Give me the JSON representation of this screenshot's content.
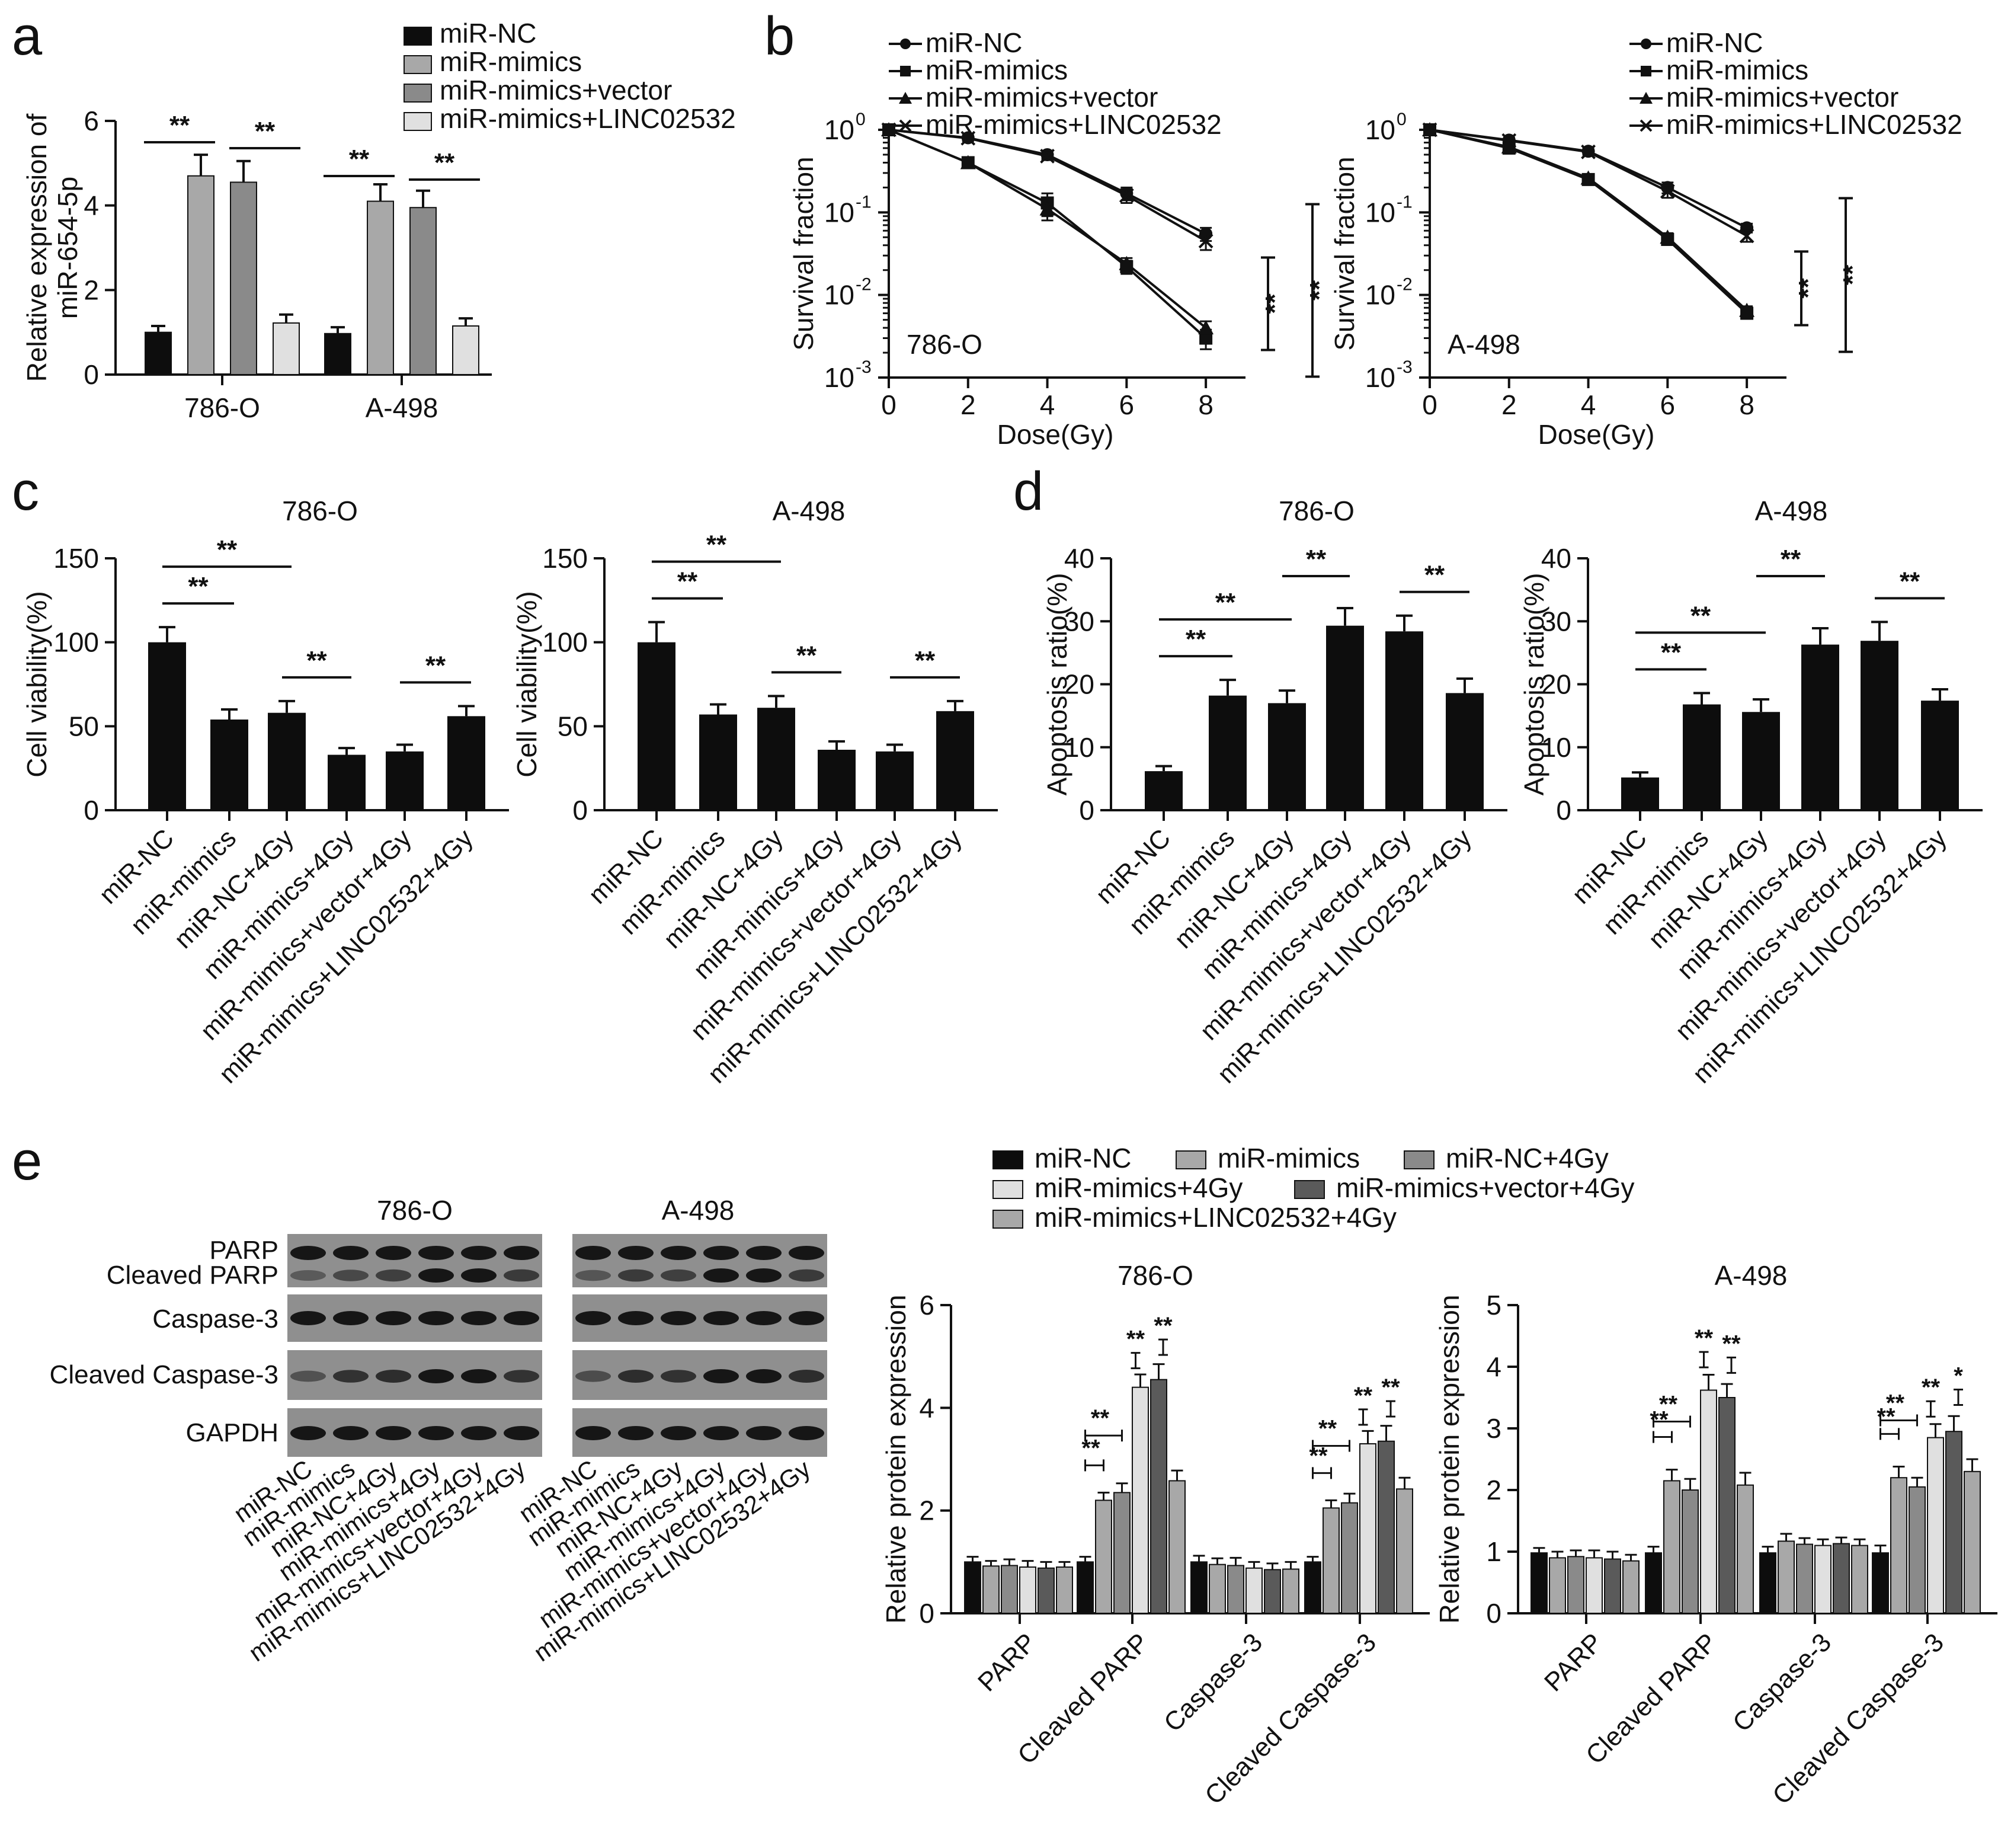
{
  "colors": {
    "black": "#0d0d0d",
    "gray_light": "#a8a8a8",
    "gray_mid": "#8a8a8a",
    "gray_pale": "#e0e0e0",
    "gray_dark": "#5a5a5a",
    "blot_bg": "#8f8f8f",
    "band": "#161616"
  },
  "panel_letters": {
    "a": "a",
    "b": "b",
    "c": "c",
    "d": "d",
    "e": "e"
  },
  "chart_data": [
    {
      "id": "a",
      "type": "bar",
      "title": "",
      "ylabel": "Relative expression of miR-654-5p",
      "ylabel_lines": [
        "Relative expression of",
        "miR-654-5p"
      ],
      "ylim": [
        0,
        6
      ],
      "yticks": [
        "0",
        "2",
        "4",
        "6"
      ],
      "categories": [
        "786-O",
        "A-498"
      ],
      "series": [
        {
          "name": "miR-NC",
          "color": "#0d0d0d",
          "values": [
            1.0,
            0.97
          ],
          "errors": [
            0.15,
            0.15
          ]
        },
        {
          "name": "miR-mimics",
          "color": "#a8a8a8",
          "values": [
            4.7,
            4.1
          ],
          "errors": [
            0.5,
            0.4
          ]
        },
        {
          "name": "miR-mimics+vector",
          "color": "#8a8a8a",
          "values": [
            4.55,
            3.95
          ],
          "errors": [
            0.5,
            0.4
          ]
        },
        {
          "name": "miR-mimics+LINC02532",
          "color": "#e0e0e0",
          "values": [
            1.22,
            1.15
          ],
          "errors": [
            0.2,
            0.18
          ]
        }
      ],
      "significance": [
        {
          "group": 0,
          "from": 0,
          "to": 1,
          "label": "**"
        },
        {
          "group": 0,
          "from": 2,
          "to": 3,
          "label": "**"
        },
        {
          "group": 1,
          "from": 0,
          "to": 1,
          "label": "**"
        },
        {
          "group": 1,
          "from": 2,
          "to": 3,
          "label": "**"
        }
      ]
    },
    {
      "id": "b-786O",
      "type": "line",
      "title": "",
      "annotation": "786-O",
      "xlabel": "Dose(Gy)",
      "ylabel": "Survival fraction",
      "x": [
        0,
        2,
        4,
        6,
        8
      ],
      "xticks": [
        "0",
        "2",
        "4",
        "6",
        "8"
      ],
      "yscale": "log",
      "ylim": [
        0.001,
        1
      ],
      "ytick_bases": [
        "10",
        "10",
        "10",
        "10"
      ],
      "ytick_exps": [
        "-3",
        "-2",
        "-1",
        "0"
      ],
      "series": [
        {
          "name": "miR-NC",
          "marker": "circle",
          "values": [
            1.0,
            0.8,
            0.5,
            0.17,
            0.055
          ],
          "errors": [
            0.03,
            0.06,
            0.05,
            0.03,
            0.01
          ]
        },
        {
          "name": "miR-mimics",
          "marker": "square",
          "values": [
            1.0,
            0.4,
            0.13,
            0.022,
            0.003
          ],
          "errors": [
            0.03,
            0.03,
            0.04,
            0.004,
            0.0008
          ]
        },
        {
          "name": "miR-mimics+vector",
          "marker": "triangle",
          "values": [
            1.0,
            0.4,
            0.11,
            0.024,
            0.004
          ],
          "errors": [
            0.03,
            0.03,
            0.03,
            0.004,
            0.0008
          ]
        },
        {
          "name": "miR-mimics+LINC02532",
          "marker": "x",
          "values": [
            1.0,
            0.79,
            0.48,
            0.16,
            0.045
          ],
          "errors": [
            0.03,
            0.06,
            0.05,
            0.03,
            0.01
          ]
        }
      ],
      "significance": [
        "**",
        "**"
      ]
    },
    {
      "id": "b-A498",
      "type": "line",
      "title": "",
      "annotation": "A-498",
      "xlabel": "Dose(Gy)",
      "ylabel": "Survival fraction",
      "x": [
        0,
        2,
        4,
        6,
        8
      ],
      "xticks": [
        "0",
        "2",
        "4",
        "6",
        "8"
      ],
      "yscale": "log",
      "ylim": [
        0.001,
        1
      ],
      "ytick_bases": [
        "10",
        "10",
        "10",
        "10"
      ],
      "ytick_exps": [
        "-3",
        "-2",
        "-1",
        "0"
      ],
      "series": [
        {
          "name": "miR-NC",
          "marker": "circle",
          "values": [
            1.0,
            0.75,
            0.55,
            0.2,
            0.065
          ],
          "errors": [
            0.03,
            0.05,
            0.04,
            0.03,
            0.008
          ]
        },
        {
          "name": "miR-mimics",
          "marker": "square",
          "values": [
            1.0,
            0.6,
            0.25,
            0.047,
            0.006
          ],
          "errors": [
            0.03,
            0.04,
            0.02,
            0.006,
            0.0008
          ]
        },
        {
          "name": "miR-mimics+vector",
          "marker": "triangle",
          "values": [
            1.0,
            0.62,
            0.26,
            0.05,
            0.0065
          ],
          "errors": [
            0.03,
            0.04,
            0.02,
            0.006,
            0.0008
          ]
        },
        {
          "name": "miR-mimics+LINC02532",
          "marker": "x",
          "values": [
            1.0,
            0.74,
            0.54,
            0.18,
            0.052
          ],
          "errors": [
            0.03,
            0.05,
            0.04,
            0.03,
            0.008
          ]
        }
      ],
      "significance": [
        "**",
        "**"
      ]
    },
    {
      "id": "c-786O",
      "type": "bar",
      "title": "786-O",
      "ylabel": "Cell viability(%)",
      "ylim": [
        0,
        150
      ],
      "yticks": [
        "0",
        "50",
        "100",
        "150"
      ],
      "categories": [
        "miR-NC",
        "miR-mimics",
        "miR-NC+4Gy",
        "miR-mimics+4Gy",
        "miR-mimics+vector+4Gy",
        "miR-mimics+LINC02532+4Gy"
      ],
      "values": [
        100,
        54,
        58,
        33,
        35,
        56
      ],
      "errors": [
        9,
        6,
        7,
        4,
        4,
        6
      ],
      "significance": [
        {
          "from": 0,
          "to": 1,
          "label": "**",
          "level": 0
        },
        {
          "from": 0,
          "to": 2,
          "label": "**",
          "level": 1
        },
        {
          "from": 2,
          "to": 3,
          "label": "**",
          "level": 0
        },
        {
          "from": 4,
          "to": 5,
          "label": "**",
          "level": 0
        }
      ]
    },
    {
      "id": "c-A498",
      "type": "bar",
      "title": "A-498",
      "ylabel": "Cell viability(%)",
      "ylim": [
        0,
        150
      ],
      "yticks": [
        "0",
        "50",
        "100",
        "150"
      ],
      "categories": [
        "miR-NC",
        "miR-mimics",
        "miR-NC+4Gy",
        "miR-mimics+4Gy",
        "miR-mimics+vector+4Gy",
        "miR-mimics+LINC02532+4Gy"
      ],
      "values": [
        100,
        57,
        61,
        36,
        35,
        59
      ],
      "errors": [
        12,
        6,
        7,
        5,
        4,
        6
      ],
      "significance": [
        {
          "from": 0,
          "to": 1,
          "label": "**",
          "level": 0
        },
        {
          "from": 0,
          "to": 2,
          "label": "**",
          "level": 1
        },
        {
          "from": 2,
          "to": 3,
          "label": "**",
          "level": 0
        },
        {
          "from": 4,
          "to": 5,
          "label": "**",
          "level": 0
        }
      ]
    },
    {
      "id": "d-786O",
      "type": "bar",
      "title": "786-O",
      "ylabel": "Apoptosis ratio(%)",
      "ylim": [
        0,
        40
      ],
      "yticks": [
        "0",
        "10",
        "20",
        "30",
        "40"
      ],
      "categories": [
        "miR-NC",
        "miR-mimics",
        "miR-NC+4Gy",
        "miR-mimics+4Gy",
        "miR-mimics+vector+4Gy",
        "miR-mimics+LINC02532+4Gy"
      ],
      "values": [
        6.2,
        18.2,
        17.0,
        29.3,
        28.4,
        18.6
      ],
      "errors": [
        0.8,
        2.5,
        2.0,
        2.8,
        2.5,
        2.3
      ],
      "significance": [
        {
          "from": 0,
          "to": 1,
          "label": "**",
          "level": 0
        },
        {
          "from": 0,
          "to": 2,
          "label": "**",
          "level": 1
        },
        {
          "from": 2,
          "to": 3,
          "label": "**",
          "level": 2
        },
        {
          "from": 4,
          "to": 5,
          "label": "**",
          "level": 0
        }
      ]
    },
    {
      "id": "d-A498",
      "type": "bar",
      "title": "A-498",
      "ylabel": "Apoptosis ratio(%)",
      "ylim": [
        0,
        40
      ],
      "yticks": [
        "0",
        "10",
        "20",
        "30",
        "40"
      ],
      "categories": [
        "miR-NC",
        "miR-mimics",
        "miR-NC+4Gy",
        "miR-mimics+4Gy",
        "miR-mimics+vector+4Gy",
        "miR-mimics+LINC02532+4Gy"
      ],
      "values": [
        5.2,
        16.8,
        15.6,
        26.3,
        26.9,
        17.4
      ],
      "errors": [
        0.8,
        1.8,
        2.0,
        2.6,
        3.0,
        1.8
      ],
      "significance": [
        {
          "from": 0,
          "to": 1,
          "label": "**",
          "level": 0
        },
        {
          "from": 0,
          "to": 2,
          "label": "**",
          "level": 1
        },
        {
          "from": 2,
          "to": 3,
          "label": "**",
          "level": 2
        },
        {
          "from": 4,
          "to": 5,
          "label": "**",
          "level": 0
        }
      ]
    },
    {
      "id": "e-786O",
      "type": "bar",
      "title": "786-O",
      "ylabel": "Relative protein expression",
      "ylim": [
        0,
        6
      ],
      "yticks": [
        "0",
        "2",
        "4",
        "6"
      ],
      "categories": [
        "PARP",
        "Cleaved PARP",
        "Caspase-3",
        "Cleaved Caspase-3"
      ],
      "series": [
        {
          "name": "miR-NC",
          "color": "#0d0d0d",
          "values": [
            1.0,
            1.0,
            1.0,
            1.0
          ],
          "errors": [
            0.1,
            0.1,
            0.12,
            0.1
          ]
        },
        {
          "name": "miR-mimics",
          "color": "#a8a8a8",
          "values": [
            0.92,
            2.2,
            0.95,
            2.05
          ],
          "errors": [
            0.1,
            0.15,
            0.12,
            0.15
          ]
        },
        {
          "name": "miR-NC+4Gy",
          "color": "#8a8a8a",
          "values": [
            0.93,
            2.35,
            0.93,
            2.15
          ],
          "errors": [
            0.12,
            0.18,
            0.15,
            0.18
          ]
        },
        {
          "name": "miR-mimics+4Gy",
          "color": "#e0e0e0",
          "values": [
            0.9,
            4.4,
            0.88,
            3.3
          ],
          "errors": [
            0.12,
            0.25,
            0.12,
            0.25
          ]
        },
        {
          "name": "miR-mimics+vector+4Gy",
          "color": "#5a5a5a",
          "values": [
            0.88,
            4.55,
            0.85,
            3.35
          ],
          "errors": [
            0.12,
            0.3,
            0.12,
            0.3
          ]
        },
        {
          "name": "miR-mimics+LINC02532+4Gy",
          "color": "#a8a8a8",
          "values": [
            0.9,
            2.58,
            0.86,
            2.42
          ],
          "errors": [
            0.1,
            0.2,
            0.14,
            0.22
          ]
        }
      ],
      "significance": [
        {
          "group": 1,
          "labels": [
            "**",
            "**",
            "**",
            "**"
          ]
        },
        {
          "group": 3,
          "labels": [
            "**",
            "**",
            "**",
            "**"
          ]
        }
      ]
    },
    {
      "id": "e-A498",
      "type": "bar",
      "title": "A-498",
      "ylabel": "Relative protein expression",
      "ylim": [
        0,
        5
      ],
      "yticks": [
        "0",
        "1",
        "2",
        "3",
        "4",
        "5"
      ],
      "categories": [
        "PARP",
        "Cleaved PARP",
        "Caspase-3",
        "Cleaved Caspase-3"
      ],
      "series": [
        {
          "name": "miR-NC",
          "color": "#0d0d0d",
          "values": [
            0.98,
            0.98,
            0.98,
            0.98
          ],
          "errors": [
            0.08,
            0.1,
            0.1,
            0.12
          ]
        },
        {
          "name": "miR-mimics",
          "color": "#a8a8a8",
          "values": [
            0.9,
            2.15,
            1.17,
            2.2
          ],
          "errors": [
            0.1,
            0.18,
            0.12,
            0.18
          ]
        },
        {
          "name": "miR-NC+4Gy",
          "color": "#8a8a8a",
          "values": [
            0.92,
            2.0,
            1.12,
            2.05
          ],
          "errors": [
            0.1,
            0.18,
            0.1,
            0.15
          ]
        },
        {
          "name": "miR-mimics+4Gy",
          "color": "#e0e0e0",
          "values": [
            0.9,
            3.62,
            1.1,
            2.85
          ],
          "errors": [
            0.12,
            0.25,
            0.1,
            0.22
          ]
        },
        {
          "name": "miR-mimics+vector+4Gy",
          "color": "#5a5a5a",
          "values": [
            0.88,
            3.5,
            1.13,
            2.95
          ],
          "errors": [
            0.12,
            0.22,
            0.1,
            0.25
          ]
        },
        {
          "name": "miR-mimics+LINC02532+4Gy",
          "color": "#a8a8a8",
          "values": [
            0.85,
            2.08,
            1.1,
            2.3
          ],
          "errors": [
            0.1,
            0.2,
            0.1,
            0.2
          ]
        }
      ],
      "significance": [
        {
          "group": 1,
          "labels": [
            "**",
            "**",
            "**",
            "**"
          ]
        },
        {
          "group": 3,
          "labels": [
            "**",
            "**",
            "**",
            "*"
          ]
        }
      ]
    }
  ],
  "panel_e_legend": {
    "row1": [
      "miR-NC",
      "miR-mimics",
      "miR-NC+4Gy"
    ],
    "row2": [
      "miR-mimics+4Gy",
      "miR-mimics+vector+4Gy"
    ],
    "row3": [
      "miR-mimics+LINC02532+4Gy"
    ]
  },
  "western_blot": {
    "cell_lines": [
      "786-O",
      "A-498"
    ],
    "row_labels": [
      "PARP",
      "Cleaved PARP",
      "Caspase-3",
      "Cleaved Caspase-3",
      "GAPDH"
    ],
    "lane_labels": [
      "miR-NC",
      "miR-mimics",
      "miR-NC+4Gy",
      "miR-mimics+4Gy",
      "miR-mimics+vector+4Gy",
      "miR-mimics+LINC02532+4Gy"
    ],
    "band_intensity": {
      "786-O": {
        "PARP": [
          1,
          1,
          1,
          1,
          1,
          1
        ],
        "Cleaved PARP": [
          0.25,
          0.45,
          0.55,
          1,
          1,
          0.6
        ],
        "Caspase-3": [
          1,
          1,
          1,
          1,
          1,
          1
        ],
        "Cleaved Caspase-3": [
          0.35,
          0.7,
          0.75,
          1,
          1,
          0.7
        ],
        "GAPDH": [
          1,
          1,
          1,
          1,
          1,
          1
        ]
      },
      "A-498": {
        "PARP": [
          1,
          1,
          1,
          1,
          1,
          1
        ],
        "Cleaved PARP": [
          0.3,
          0.6,
          0.55,
          1,
          1,
          0.6
        ],
        "Caspase-3": [
          1,
          1,
          1,
          1,
          1,
          1
        ],
        "Cleaved Caspase-3": [
          0.4,
          0.75,
          0.7,
          1,
          1,
          0.75
        ],
        "GAPDH": [
          1,
          1,
          1,
          1,
          1,
          1
        ]
      }
    }
  }
}
